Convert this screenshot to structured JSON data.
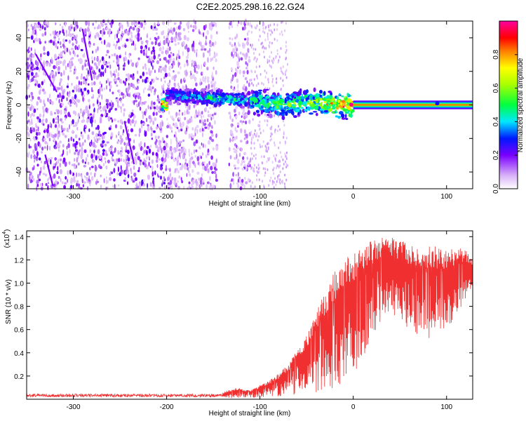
{
  "title": "C2E2.2025.298.16.22.G24",
  "colors": {
    "snr_line": "#f03030",
    "spectro_dot": "#7a1ef0",
    "spectro_light": "#c8a8f5"
  },
  "chart_data": [
    {
      "type": "heatmap",
      "name": "spectrogram",
      "xlabel": "Height of straight line (km)",
      "ylabel": "Frequency (Hz)",
      "xlim": [
        -350,
        128
      ],
      "ylim": [
        -50,
        50
      ],
      "xticks": [
        -300,
        -200,
        -100,
        0,
        100
      ],
      "yticks": [
        -40,
        -20,
        0,
        20,
        40
      ],
      "xtick_labels": [
        "-300",
        "-200",
        "-100",
        "0",
        "100"
      ],
      "ytick_labels": [
        "-40",
        "-20",
        "0",
        "20",
        "40"
      ],
      "colorbar": {
        "label": "Normalized spectral amplitude",
        "range": [
          0.0,
          1.0
        ],
        "ticks": [
          0.0,
          0.2,
          0.4,
          0.6,
          0.8
        ],
        "tick_labels": [
          "0.0",
          "0.2",
          "0.4",
          "0.6",
          "0.8"
        ],
        "stops": [
          {
            "v": 0.0,
            "c": "#ffffff"
          },
          {
            "v": 0.08,
            "c": "#d8b0f8"
          },
          {
            "v": 0.2,
            "c": "#7a00ff"
          },
          {
            "v": 0.3,
            "c": "#0018ff"
          },
          {
            "v": 0.4,
            "c": "#00e8ff"
          },
          {
            "v": 0.5,
            "c": "#00ff40"
          },
          {
            "v": 0.62,
            "c": "#a8ff00"
          },
          {
            "v": 0.72,
            "c": "#ffff00"
          },
          {
            "v": 0.82,
            "c": "#ff8000"
          },
          {
            "v": 0.9,
            "c": "#ff0000"
          },
          {
            "v": 1.0,
            "c": "#ff00a0"
          }
        ]
      },
      "noise_region_km": [
        -350,
        -110
      ],
      "gap_km": [
        -146,
        -133
      ],
      "tone_ridge": [
        {
          "x": -200,
          "y": 6,
          "a": 0.35
        },
        {
          "x": -180,
          "y": 5,
          "a": 0.4
        },
        {
          "x": -160,
          "y": 4,
          "a": 0.45
        },
        {
          "x": -140,
          "y": 4,
          "a": 0.5
        },
        {
          "x": -120,
          "y": 3,
          "a": 0.45
        },
        {
          "x": -100,
          "y": 2,
          "a": 0.5
        },
        {
          "x": -80,
          "y": 0,
          "a": 0.55
        },
        {
          "x": -60,
          "y": 1,
          "a": 0.55
        },
        {
          "x": -40,
          "y": 2,
          "a": 0.6
        },
        {
          "x": -20,
          "y": 0,
          "a": 0.8
        },
        {
          "x": 0,
          "y": 0,
          "a": 0.9
        },
        {
          "x": 128,
          "y": 0,
          "a": 0.9
        }
      ]
    },
    {
      "type": "line",
      "name": "snr",
      "xlabel": "Height of straight line (km)",
      "ylabel": "SNR (10 * v/v)",
      "y_multiplier": "(x10",
      "y_multiplier_exp": "4",
      "y_multiplier_close": ")",
      "xlim": [
        -350,
        128
      ],
      "ylim": [
        0,
        1.45
      ],
      "xticks": [
        -300,
        -200,
        -100,
        0,
        100
      ],
      "yticks": [
        0.2,
        0.4,
        0.6,
        0.8,
        1.0,
        1.2,
        1.4
      ],
      "xtick_labels": [
        "-300",
        "-200",
        "-100",
        "0",
        "100"
      ],
      "ytick_labels": [
        "0.2",
        "0.4",
        "0.6",
        "0.8",
        "1.0",
        "1.2",
        "1.4"
      ],
      "envelope_upper": {
        "x": [
          -350,
          -200,
          -140,
          -125,
          -110,
          -90,
          -70,
          -50,
          -40,
          -30,
          -20,
          -10,
          0,
          10,
          20,
          30,
          40,
          60,
          80,
          100,
          110,
          120,
          128
        ],
        "y": [
          0.045,
          0.045,
          0.06,
          0.1,
          0.08,
          0.16,
          0.3,
          0.55,
          0.75,
          0.95,
          1.1,
          1.2,
          1.28,
          1.32,
          1.37,
          1.41,
          1.4,
          1.35,
          1.33,
          1.3,
          1.31,
          1.3,
          1.2
        ]
      },
      "envelope_lower": {
        "x": [
          -350,
          -200,
          -140,
          -110,
          -90,
          -70,
          -50,
          -40,
          -30,
          -20,
          -10,
          0,
          10,
          20,
          30,
          40,
          60,
          80,
          100,
          110,
          120,
          128
        ],
        "y": [
          0.01,
          0.01,
          0.01,
          0.01,
          0.02,
          0.03,
          0.05,
          0.06,
          0.08,
          0.1,
          0.15,
          0.2,
          0.35,
          0.55,
          0.65,
          0.75,
          0.6,
          0.5,
          0.55,
          0.7,
          0.85,
          0.95
        ]
      }
    }
  ]
}
